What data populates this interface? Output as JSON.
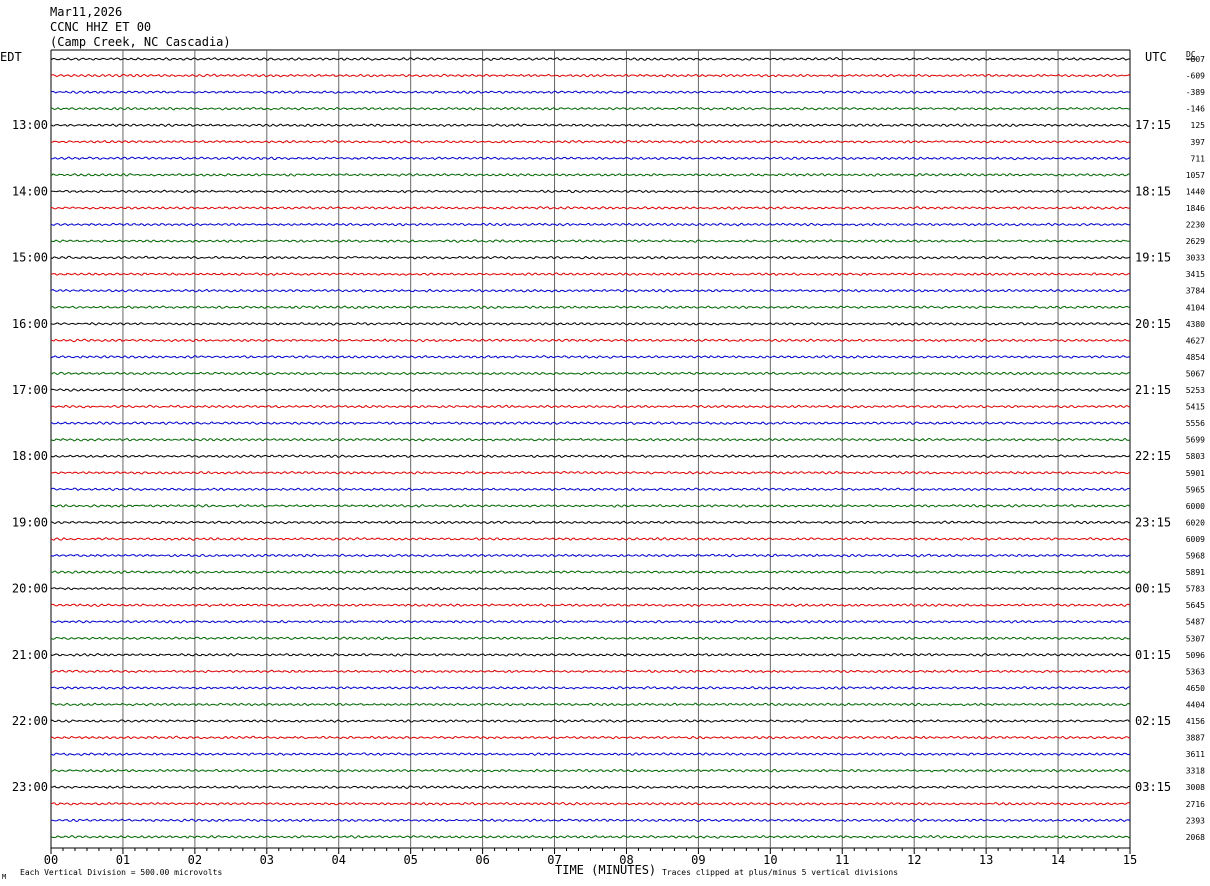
{
  "header": {
    "date": "Mar11,2026",
    "station": "CCNC HHZ ET 00",
    "location": "(Camp Creek, NC Cascadia)"
  },
  "labels": {
    "left_tz": "EDT",
    "right_tz": "UTC",
    "dc_header": "DC",
    "x_axis": "TIME (MINUTES)",
    "scale_note": "Each Vertical Division =  500.00 microvolts",
    "clip_note": "Traces clipped at plus/minus 5 vertical divisions",
    "corner_mark": "M"
  },
  "chart_data": {
    "type": "line",
    "title": "CCNC HHZ ET 00",
    "xlabel": "TIME (MINUTES)",
    "ylabel": "",
    "x_ticks": [
      "00",
      "01",
      "02",
      "03",
      "04",
      "05",
      "06",
      "07",
      "08",
      "09",
      "10",
      "11",
      "12",
      "13",
      "14",
      "15"
    ],
    "xlim": [
      0,
      15
    ],
    "trace_colors": [
      "#000000",
      "#dd0000",
      "#0000cc",
      "#006600"
    ],
    "traces_per_hour": 4,
    "trace_minutes": 15,
    "left_hour_labels": [
      "13:00",
      "14:00",
      "15:00",
      "16:00",
      "17:00",
      "18:00",
      "19:00",
      "20:00",
      "21:00",
      "22:00",
      "23:00"
    ],
    "right_hour_labels": [
      "17:15",
      "18:15",
      "19:15",
      "20:15",
      "21:15",
      "22:15",
      "23:15",
      "00:15",
      "01:15",
      "02:15",
      "03:15"
    ],
    "dc_offsets": [
      "-807",
      "-609",
      "-389",
      "-146",
      "125",
      "397",
      "711",
      "1057",
      "1440",
      "1846",
      "2230",
      "2629",
      "3033",
      "3415",
      "3784",
      "4104",
      "4380",
      "4627",
      "4854",
      "5067",
      "5253",
      "5415",
      "5556",
      "5699",
      "5803",
      "5901",
      "5965",
      "6000",
      "6020",
      "6009",
      "5968",
      "5891",
      "5783",
      "5645",
      "5487",
      "5307",
      "5096",
      "5363",
      "4650",
      "4404",
      "4156",
      "3887",
      "3611",
      "3318",
      "3008",
      "2716",
      "2393",
      "2068"
    ],
    "scale_microvolts_per_division": 500.0,
    "clip_divisions": 5
  }
}
